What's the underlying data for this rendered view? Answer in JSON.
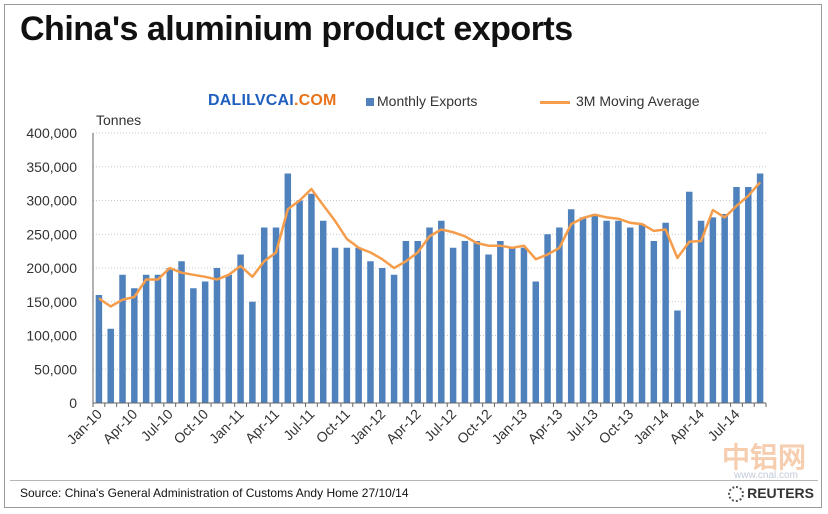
{
  "title": "China's aluminium product exports",
  "watermark": {
    "part1": "DALILVCAI",
    "part2": ".COM"
  },
  "legend": {
    "bar_label": "Monthly Exports",
    "line_label": "3M Moving Average"
  },
  "unit_label": "Tonnes",
  "source": "Source: China's General  Administration of Customs   Andy Home 27/10/14",
  "publisher": "REUTERS",
  "corner_mark": {
    "name": "中铝网",
    "url": "www.cnal.com"
  },
  "colors": {
    "bars": "#4f81bd",
    "line": "#f59d4b"
  },
  "chart_data": {
    "type": "bar",
    "title": "China's aluminium product exports",
    "ylabel": "Tonnes",
    "ylim": [
      0,
      400000
    ],
    "yticks": [
      0,
      50000,
      100000,
      150000,
      200000,
      250000,
      300000,
      350000,
      400000
    ],
    "ytick_labels": [
      "0",
      "50,000",
      "100,000",
      "150,000",
      "200,000",
      "250,000",
      "300,000",
      "350,000",
      "400,000"
    ],
    "grid": "horizontal dotted",
    "legend_position": "top",
    "categories": [
      "Jan-10",
      "Feb-10",
      "Mar-10",
      "Apr-10",
      "May-10",
      "Jun-10",
      "Jul-10",
      "Aug-10",
      "Sep-10",
      "Oct-10",
      "Nov-10",
      "Dec-10",
      "Jan-11",
      "Feb-11",
      "Mar-11",
      "Apr-11",
      "May-11",
      "Jun-11",
      "Jul-11",
      "Aug-11",
      "Sep-11",
      "Oct-11",
      "Nov-11",
      "Dec-11",
      "Jan-12",
      "Feb-12",
      "Mar-12",
      "Apr-12",
      "May-12",
      "Jun-12",
      "Jul-12",
      "Aug-12",
      "Sep-12",
      "Oct-12",
      "Nov-12",
      "Dec-12",
      "Jan-13",
      "Feb-13",
      "Mar-13",
      "Apr-13",
      "May-13",
      "Jun-13",
      "Jul-13",
      "Aug-13",
      "Sep-13",
      "Oct-13",
      "Nov-13",
      "Dec-13",
      "Jan-14",
      "Feb-14",
      "Mar-14",
      "Apr-14",
      "May-14",
      "Jun-14",
      "Jul-14",
      "Aug-14",
      "Sep-14"
    ],
    "x_tick_labels": [
      "Jan-10",
      "Apr-10",
      "Jul-10",
      "Oct-10",
      "Jan-11",
      "Apr-11",
      "Jul-11",
      "Oct-11",
      "Jan-12",
      "Apr-12",
      "Jul-12",
      "Oct-12",
      "Jan-13",
      "Apr-13",
      "Jul-13",
      "Oct-13",
      "Jan-14",
      "Apr-14",
      "Jul-14"
    ],
    "series": [
      {
        "name": "Monthly Exports",
        "type": "bar",
        "values": [
          160000,
          110000,
          190000,
          170000,
          190000,
          190000,
          200000,
          210000,
          170000,
          180000,
          200000,
          190000,
          220000,
          150000,
          260000,
          260000,
          340000,
          300000,
          310000,
          270000,
          230000,
          230000,
          230000,
          210000,
          200000,
          190000,
          240000,
          240000,
          260000,
          270000,
          230000,
          240000,
          240000,
          220000,
          240000,
          230000,
          230000,
          180000,
          250000,
          260000,
          287000,
          275000,
          280000,
          270000,
          270000,
          260000,
          265000,
          240000,
          267000,
          137000,
          313000,
          270000,
          275000,
          280000,
          320000,
          320000,
          340000
        ]
      },
      {
        "name": "3M Moving Average",
        "type": "line",
        "values": [
          155000,
          143000,
          153000,
          157000,
          183000,
          183000,
          200000,
          193000,
          190000,
          187000,
          183000,
          190000,
          203000,
          187000,
          210000,
          223000,
          287000,
          300000,
          317000,
          293000,
          270000,
          243000,
          230000,
          223000,
          213000,
          200000,
          210000,
          223000,
          247000,
          257000,
          253000,
          247000,
          237000,
          233000,
          233000,
          230000,
          233000,
          213000,
          220000,
          230000,
          265000,
          274000,
          279000,
          275000,
          273000,
          267000,
          265000,
          255000,
          257000,
          215000,
          239000,
          240000,
          286000,
          275000,
          292000,
          307000,
          327000
        ]
      }
    ]
  }
}
